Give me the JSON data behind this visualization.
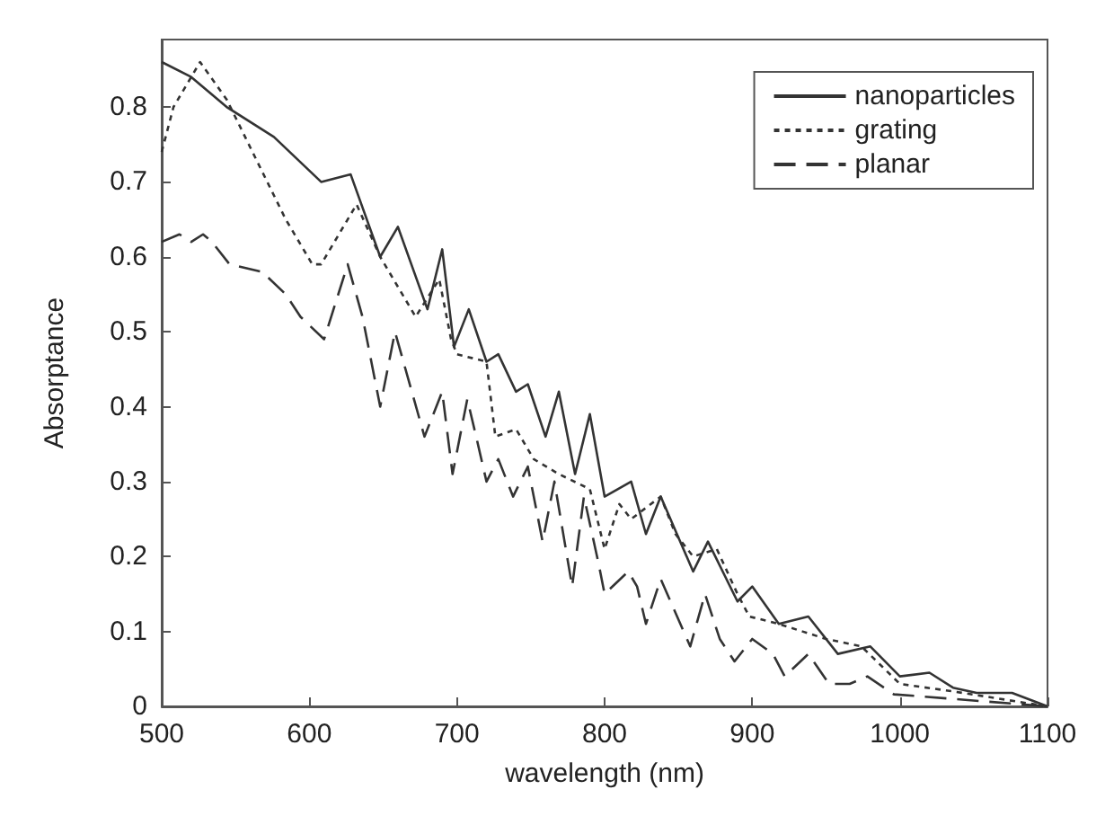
{
  "chart_data": {
    "type": "line",
    "xlabel": "wavelength (nm)",
    "ylabel": "Absorptance",
    "xlim": [
      500,
      1100
    ],
    "ylim": [
      0,
      0.89
    ],
    "xticks": [
      500,
      600,
      700,
      800,
      900,
      1000,
      1100
    ],
    "yticks": [
      0,
      0.1,
      0.2,
      0.3,
      0.4,
      0.5,
      0.6,
      0.7,
      0.8
    ],
    "grid": false,
    "legend": "top right",
    "marker": "none",
    "series": [
      {
        "name": "nanoparticles",
        "color": "#333333",
        "line_style": "solid",
        "x": [
          500,
          520,
          544,
          576,
          608,
          628,
          648,
          660,
          680,
          690,
          698,
          708,
          720,
          728,
          740,
          748,
          760,
          769,
          780,
          790,
          800,
          818,
          828,
          838,
          860,
          870,
          890,
          900,
          918,
          938,
          958,
          980,
          1000,
          1020,
          1036,
          1052,
          1076,
          1100
        ],
        "values": [
          0.86,
          0.84,
          0.8,
          0.76,
          0.7,
          0.71,
          0.6,
          0.64,
          0.53,
          0.61,
          0.48,
          0.53,
          0.46,
          0.47,
          0.42,
          0.43,
          0.36,
          0.42,
          0.31,
          0.39,
          0.28,
          0.3,
          0.23,
          0.28,
          0.18,
          0.22,
          0.14,
          0.16,
          0.11,
          0.12,
          0.07,
          0.08,
          0.04,
          0.045,
          0.025,
          0.018,
          0.018,
          0
        ]
      },
      {
        "name": "grating",
        "color": "#333333",
        "line_style": "dotted",
        "x": [
          500,
          508,
          526,
          544,
          564,
          584,
          602,
          608,
          632,
          648,
          672,
          688,
          696,
          700,
          720,
          726,
          740,
          752,
          769,
          790,
          800,
          810,
          818,
          838,
          848,
          860,
          876,
          890,
          898,
          918,
          934,
          950,
          974,
          1000,
          1036,
          1100
        ],
        "values": [
          0.74,
          0.8,
          0.86,
          0.81,
          0.73,
          0.65,
          0.59,
          0.59,
          0.67,
          0.6,
          0.52,
          0.57,
          0.49,
          0.47,
          0.46,
          0.36,
          0.37,
          0.33,
          0.31,
          0.29,
          0.21,
          0.27,
          0.25,
          0.28,
          0.23,
          0.2,
          0.21,
          0.15,
          0.12,
          0.11,
          0.1,
          0.09,
          0.08,
          0.03,
          0.02,
          0
        ]
      },
      {
        "name": "planar",
        "color": "#333333",
        "line_style": "dashed",
        "x": [
          500,
          512,
          520,
          528,
          534,
          546,
          568,
          584,
          594,
          610,
          626,
          636,
          642,
          648,
          658,
          678,
          690,
          697,
          707,
          713,
          720,
          728,
          738,
          748,
          758,
          766,
          778,
          786,
          796,
          800,
          816,
          822,
          828,
          838,
          858,
          868,
          878,
          888,
          900,
          914,
          922,
          938,
          952,
          966,
          978,
          996,
          1010,
          1036,
          1100
        ],
        "values": [
          0.62,
          0.63,
          0.62,
          0.63,
          0.62,
          0.59,
          0.58,
          0.55,
          0.52,
          0.49,
          0.59,
          0.52,
          0.46,
          0.4,
          0.5,
          0.36,
          0.42,
          0.31,
          0.41,
          0.36,
          0.3,
          0.33,
          0.28,
          0.32,
          0.22,
          0.3,
          0.16,
          0.28,
          0.19,
          0.15,
          0.18,
          0.16,
          0.11,
          0.17,
          0.08,
          0.15,
          0.09,
          0.06,
          0.09,
          0.07,
          0.04,
          0.07,
          0.03,
          0.03,
          0.04,
          0.016,
          0.014,
          0.01,
          0
        ]
      }
    ]
  }
}
